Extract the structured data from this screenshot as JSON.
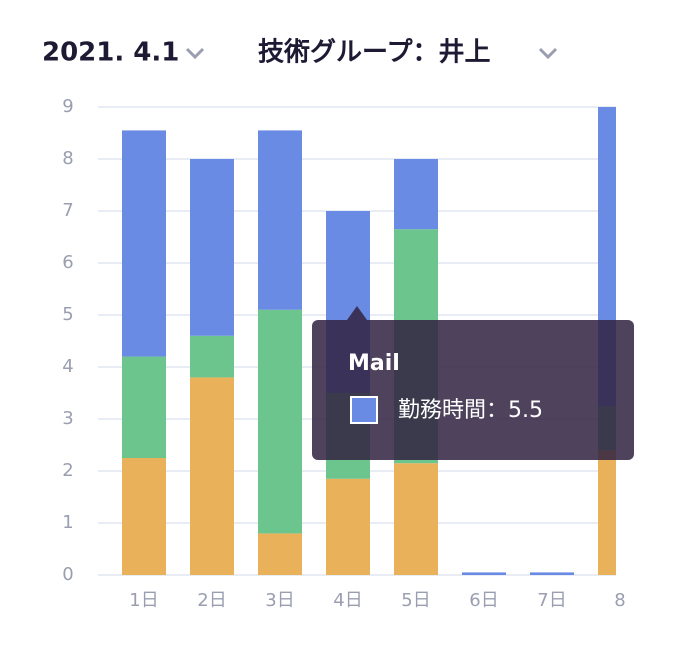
{
  "header": {
    "date": "2021. 4.1",
    "group": "技術グループ：井上"
  },
  "tooltip": {
    "title": "Mail",
    "label": "勤務時間：5.5"
  },
  "chart_data": {
    "type": "stacked-bar",
    "categories": [
      "1日",
      "2日",
      "3日",
      "4日",
      "5日",
      "6日",
      "7日",
      "8"
    ],
    "series": [
      {
        "color": "#e8b15a",
        "values": [
          2.25,
          3.8,
          0.8,
          1.85,
          2.15,
          0,
          0,
          2.4
        ]
      },
      {
        "color": "#6cc58d",
        "values": [
          1.95,
          0.8,
          4.3,
          1.65,
          4.5,
          0,
          0,
          0.85
        ]
      },
      {
        "color": "#6a8be3",
        "values": [
          4.35,
          3.4,
          3.45,
          3.5,
          1.35,
          0.05,
          0.05,
          5.75
        ]
      }
    ],
    "ylim": [
      0,
      9
    ],
    "yticks": [
      0,
      1,
      2,
      3,
      4,
      5,
      6,
      7,
      8,
      9
    ],
    "grid": true
  }
}
